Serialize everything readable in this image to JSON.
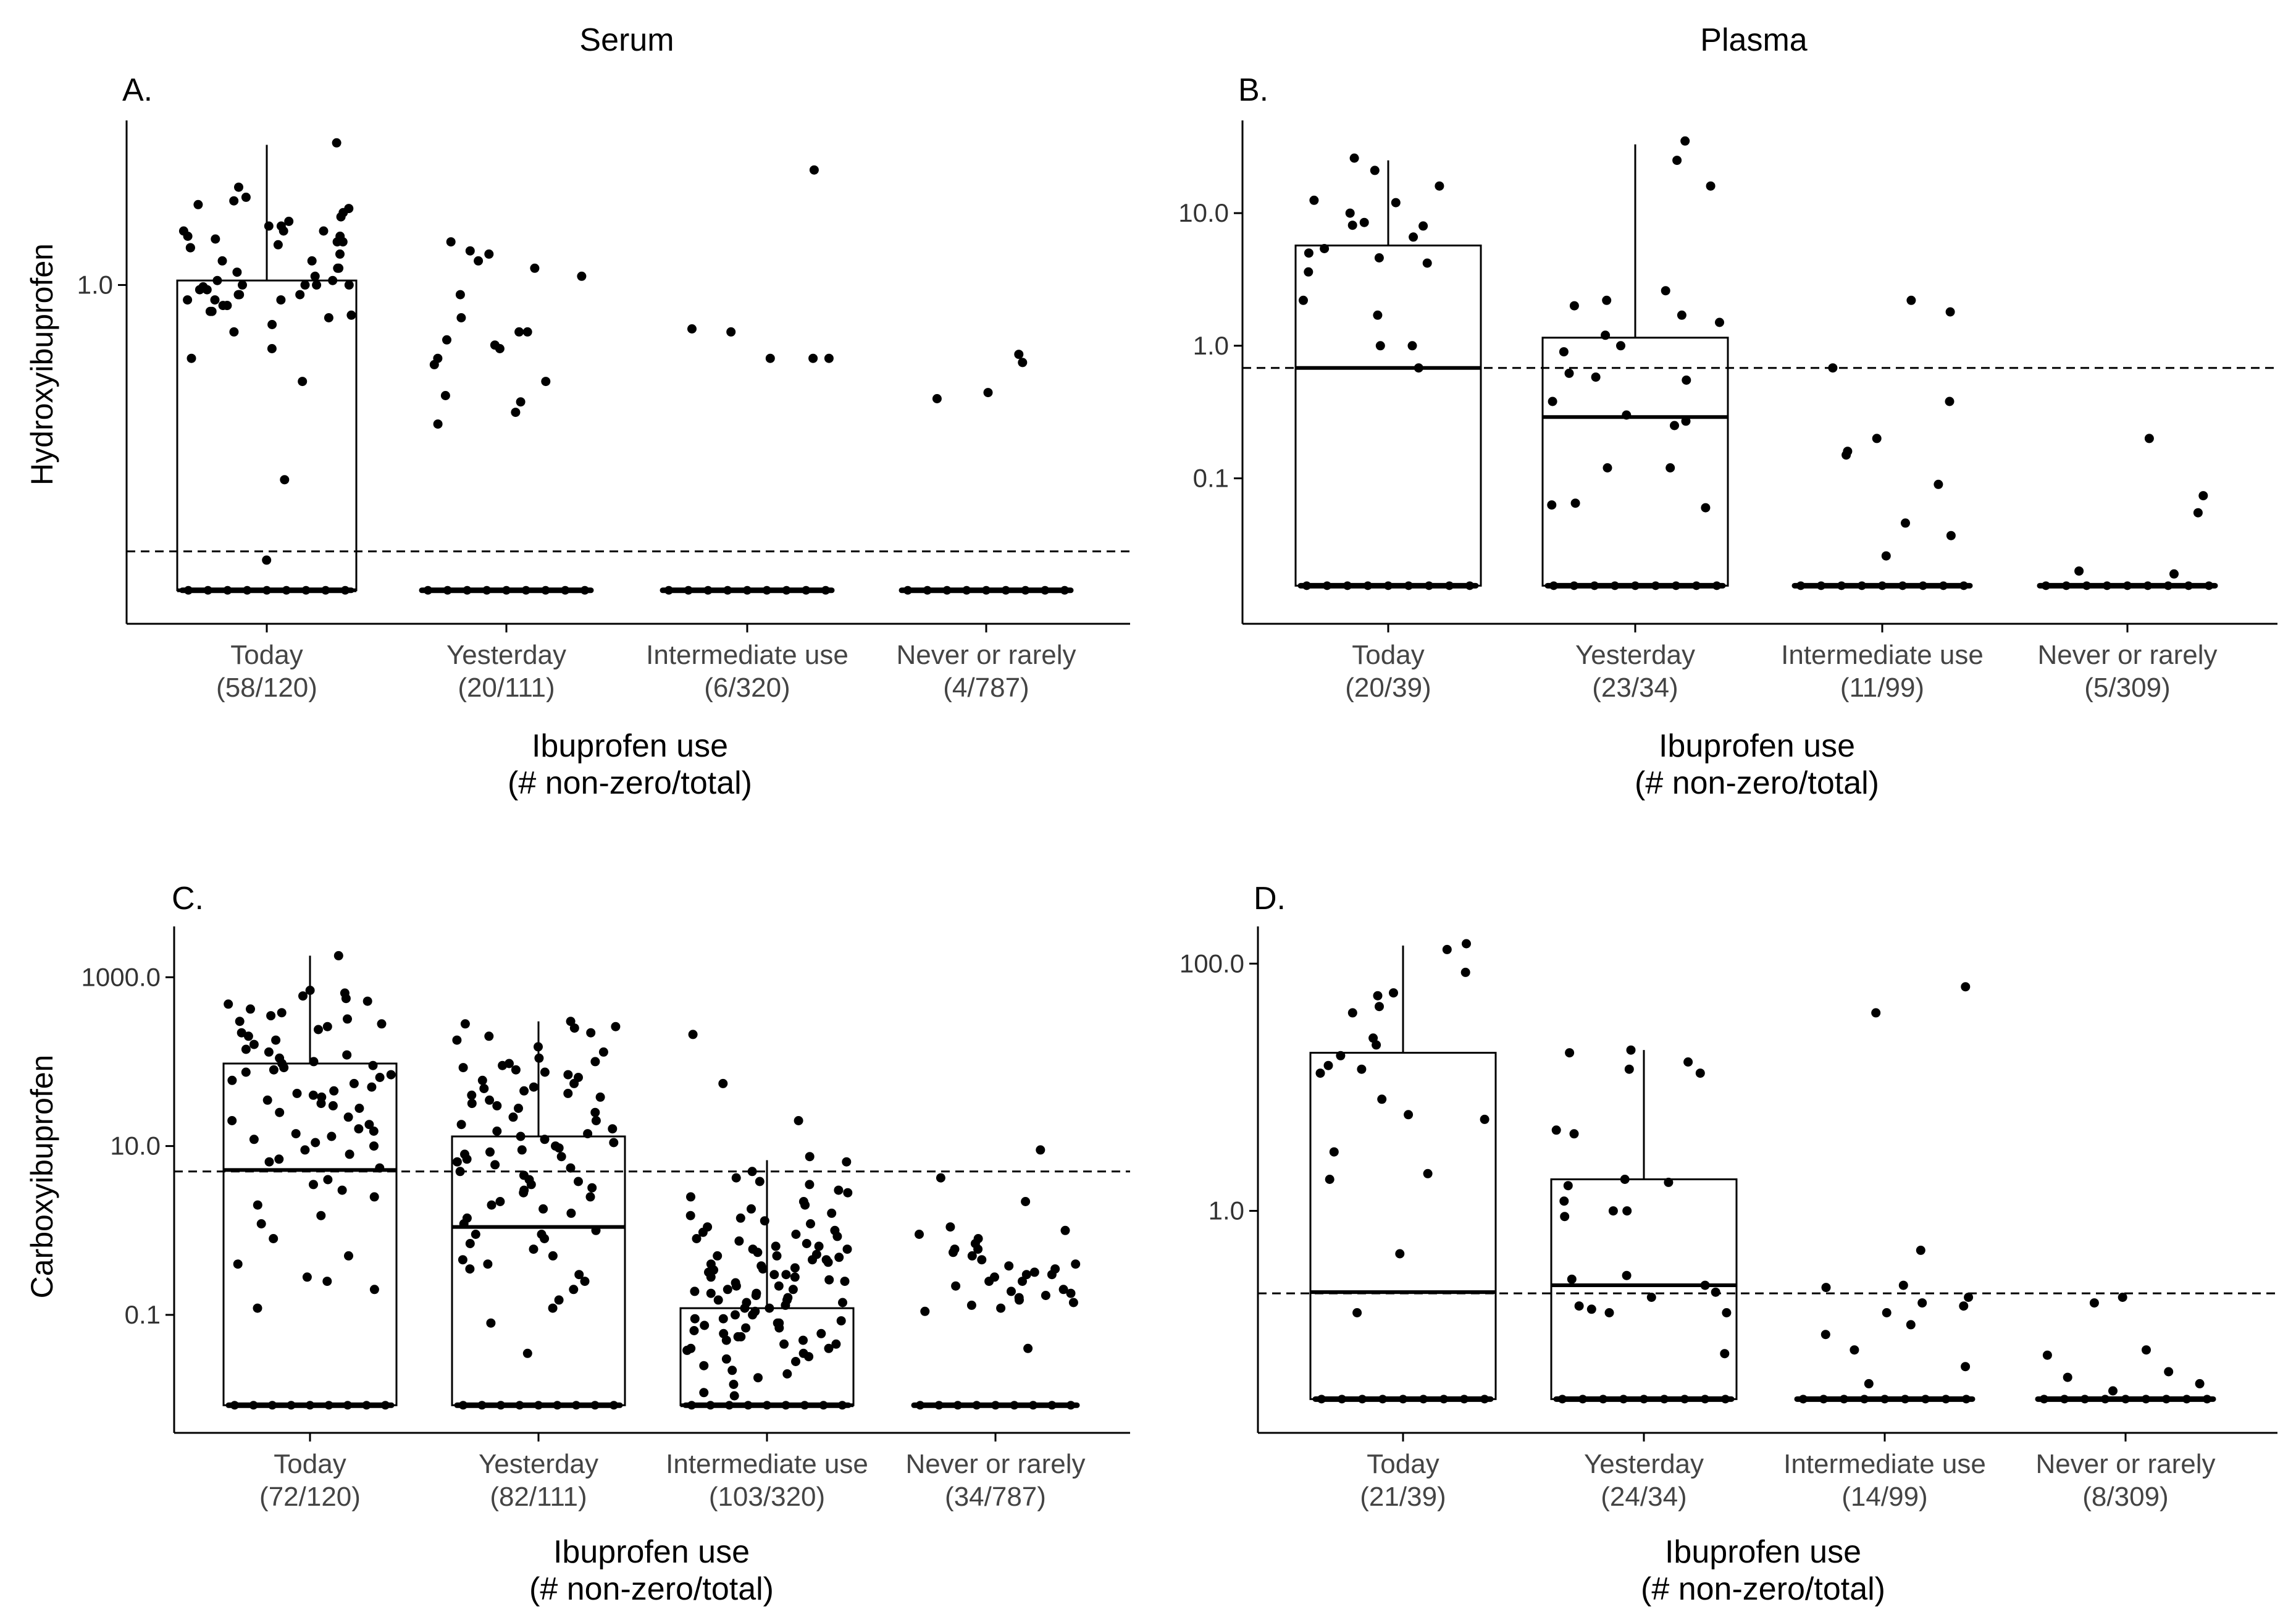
{
  "figure": {
    "column_titles": [
      "Serum",
      "Plasma"
    ]
  },
  "chart_data": [
    {
      "panel": "A.",
      "type": "boxplot+jitter",
      "scale": "log",
      "ylabel": "Hydroxyibuprofen",
      "xlabel": "Ibuprofen use",
      "xlabel_sub": "(# non-zero/total)",
      "ylim": [
        0.025,
        6
      ],
      "zero_value": 0.036,
      "yticks": [
        {
          "value": 1.0,
          "label": "1.0"
        }
      ],
      "threshold": 0.055,
      "categories": [
        {
          "name": "Today",
          "count": "(58/120)",
          "box": {
            "lower": 0.036,
            "median": 0.036,
            "upper": 1.05,
            "whisker": 4.6
          },
          "points": [
            2.4,
            1.8,
            1.6,
            1.7,
            1.8,
            1.5,
            1.3,
            1.9,
            1.6,
            1.1,
            0.9,
            0.85,
            0.8,
            1.0,
            1.0,
            0.95,
            0.9,
            0.85,
            0.8,
            0.75,
            0.7,
            1.05,
            1.2,
            1.3,
            1.4,
            2.1,
            2.5,
            2.0,
            1.9,
            1.65,
            4.7,
            2.9,
            2.3,
            2.2,
            1.7,
            1.5,
            1.2,
            1.05,
            1.0,
            0.95,
            0.9,
            0.85,
            0.8,
            0.75,
            0.72,
            0.6,
            0.5,
            0.35,
            0.12,
            0.05,
            2.6,
            1.8,
            1.15,
            1.0,
            0.98,
            0.65,
            0.45,
            1.55
          ]
        },
        {
          "name": "Yesterday",
          "count": "(20/111)",
          "box": null,
          "points": [
            1.6,
            1.2,
            1.1,
            1.3,
            0.6,
            0.5,
            0.45,
            0.3,
            0.25,
            0.22,
            0.55,
            0.52,
            0.9,
            0.7,
            0.6,
            0.42,
            0.35,
            0.28,
            1.4,
            1.45
          ]
        },
        {
          "name": "Intermediate use",
          "count": "(6/320)",
          "box": null,
          "points": [
            3.5,
            0.62,
            0.6,
            0.45,
            0.45,
            0.45
          ]
        },
        {
          "name": "Never or rarely",
          "count": "(4/787)",
          "box": null,
          "points": [
            0.31,
            0.43,
            0.47,
            0.29
          ]
        }
      ]
    },
    {
      "panel": "B.",
      "type": "boxplot+jitter",
      "scale": "log",
      "ylabel": "",
      "xlabel": "Ibuprofen use",
      "xlabel_sub": "(# non-zero/total)",
      "ylim": [
        0.008,
        50
      ],
      "zero_value": 0.0155,
      "yticks": [
        {
          "value": 10.0,
          "label": "10.0"
        },
        {
          "value": 1.0,
          "label": "1.0"
        },
        {
          "value": 0.1,
          "label": "0.1"
        }
      ],
      "threshold": 0.68,
      "categories": [
        {
          "name": "Today",
          "count": "(20/39)",
          "box": {
            "lower": 0.0155,
            "median": 0.68,
            "upper": 5.7,
            "whisker": 25
          },
          "points": [
            26,
            21,
            16,
            12,
            10,
            8.5,
            8.1,
            6.6,
            5.4,
            4.6,
            4.2,
            3.6,
            2.2,
            1.7,
            1.0,
            1.0,
            0.68,
            12.5,
            8.0,
            5.0
          ]
        },
        {
          "name": "Yesterday",
          "count": "(23/34)",
          "box": {
            "lower": 0.0155,
            "median": 0.29,
            "upper": 1.15,
            "whisker": 33
          },
          "points": [
            35,
            25,
            16,
            2.6,
            2.2,
            2.0,
            1.7,
            1.5,
            1.2,
            1.0,
            0.9,
            0.62,
            0.58,
            0.55,
            0.38,
            0.3,
            0.27,
            0.25,
            0.12,
            0.12,
            0.065,
            0.063,
            0.06
          ]
        },
        {
          "name": "Intermediate use",
          "count": "(11/99)",
          "box": null,
          "points": [
            2.2,
            1.8,
            0.68,
            0.38,
            0.2,
            0.16,
            0.15,
            0.09,
            0.046,
            0.037,
            0.026
          ]
        },
        {
          "name": "Never or rarely",
          "count": "(5/309)",
          "box": null,
          "points": [
            0.2,
            0.074,
            0.055,
            0.02,
            0.019
          ]
        }
      ]
    },
    {
      "panel": "C.",
      "type": "boxplot+jitter",
      "scale": "log",
      "ylabel": "Carboxyibuprofen",
      "xlabel": "Ibuprofen use",
      "xlabel_sub": "(# non-zero/total)",
      "ylim": [
        0.004,
        4000
      ],
      "zero_value": 0.0085,
      "yticks": [
        {
          "value": 1000.0,
          "label": "1000.0"
        },
        {
          "value": 10.0,
          "label": "10.0"
        },
        {
          "value": 0.1,
          "label": "0.1"
        }
      ],
      "threshold": 5.0,
      "categories": [
        {
          "name": "Today",
          "count": "(72/120)",
          "box": {
            "lower": 0.0085,
            "median": 5.2,
            "upper": 95,
            "whisker": 1800
          },
          "points": [
            1800,
            700,
            650,
            600,
            560,
            520,
            480,
            420,
            380,
            350,
            320,
            300,
            280,
            260,
            240,
            220,
            200,
            180,
            160,
            140,
            130,
            120,
            110,
            100,
            95,
            90,
            85,
            80,
            75,
            70,
            65,
            60,
            55,
            50,
            45,
            42,
            40,
            38,
            35,
            32,
            30,
            28,
            25,
            22,
            20,
            18,
            16,
            15,
            14,
            13,
            12,
            11,
            10,
            9,
            8,
            7,
            6.5,
            5.5,
            4,
            3.5,
            3,
            2.5,
            2,
            1.5,
            1.2,
            0.8,
            0.5,
            0.4,
            0.25,
            0.2,
            0.12,
            0.28
          ]
        },
        {
          "name": "Yesterday",
          "count": "(82/111)",
          "box": {
            "lower": 0.0085,
            "median": 1.1,
            "upper": 13,
            "whisker": 300
          },
          "points": [
            300,
            280,
            260,
            250,
            220,
            200,
            180,
            150,
            130,
            110,
            100,
            95,
            90,
            85,
            80,
            75,
            70,
            65,
            60,
            55,
            50,
            48,
            45,
            42,
            40,
            38,
            35,
            32,
            30,
            28,
            25,
            22,
            20,
            18,
            16,
            15,
            14,
            13,
            12,
            11,
            10,
            9.5,
            9,
            8.5,
            8,
            7.5,
            7,
            6.5,
            6,
            5.5,
            5,
            4.5,
            4,
            3.8,
            3.5,
            3.2,
            3,
            2.8,
            2.5,
            2.2,
            2,
            1.8,
            1.6,
            1.4,
            1.2,
            1.0,
            0.9,
            0.8,
            0.7,
            0.6,
            0.5,
            0.45,
            0.4,
            0.35,
            0.3,
            0.25,
            0.2,
            0.15,
            0.12,
            0.08,
            0.035,
            0.9
          ]
        },
        {
          "name": "Intermediate use",
          "count": "(103/320)",
          "box": {
            "lower": 0.0085,
            "median": 0.0085,
            "upper": 0.12,
            "whisker": 6.8
          },
          "points": [
            210,
            55,
            20,
            7.5,
            6.5,
            5,
            4.2,
            3.8,
            3.5,
            3.0,
            2.8,
            2.5,
            2.2,
            2.0,
            1.8,
            1.6,
            1.5,
            1.4,
            1.3,
            1.2,
            1.1,
            1.0,
            0.95,
            0.9,
            0.85,
            0.8,
            0.75,
            0.7,
            0.65,
            0.6,
            0.55,
            0.52,
            0.5,
            0.48,
            0.45,
            0.42,
            0.4,
            0.38,
            0.36,
            0.34,
            0.32,
            0.3,
            0.28,
            0.26,
            0.25,
            0.24,
            0.22,
            0.2,
            0.19,
            0.18,
            0.17,
            0.16,
            0.15,
            0.14,
            0.13,
            0.12,
            0.11,
            0.1,
            0.09,
            0.085,
            0.08,
            0.075,
            0.07,
            0.065,
            0.06,
            0.055,
            0.05,
            0.045,
            0.04,
            0.035,
            0.03,
            0.025,
            0.02,
            0.018,
            0.015,
            0.012,
            0.011,
            0.6,
            0.45,
            0.35,
            0.28,
            0.22,
            0.18,
            0.15,
            0.12,
            0.1,
            0.08,
            0.06,
            0.05,
            0.04,
            0.032,
            0.028,
            0.022,
            0.5,
            0.3,
            0.2,
            0.14,
            0.09,
            0.07,
            0.055,
            0.045,
            0.038,
            0.65
          ]
        },
        {
          "name": "Never or rarely",
          "count": "(34/787)",
          "box": null,
          "points": [
            9,
            4.2,
            2.2,
            1.1,
            1.0,
            0.9,
            0.8,
            0.7,
            0.6,
            0.55,
            0.5,
            0.45,
            0.4,
            0.38,
            0.35,
            0.32,
            0.3,
            0.28,
            0.25,
            0.22,
            0.2,
            0.19,
            0.18,
            0.17,
            0.16,
            0.15,
            0.14,
            0.13,
            0.12,
            0.11,
            0.3,
            0.25,
            0.04,
            0.6
          ]
        }
      ]
    },
    {
      "panel": "D.",
      "type": "boxplot+jitter",
      "scale": "log",
      "ylabel": "",
      "xlabel": "Ibuprofen use",
      "xlabel_sub": "(# non-zero/total)",
      "ylim": [
        0.016,
        200
      ],
      "zero_value": 0.03,
      "yticks": [
        {
          "value": 100.0,
          "label": "100.0"
        },
        {
          "value": 1.0,
          "label": "1.0"
        }
      ],
      "threshold": 0.215,
      "categories": [
        {
          "name": "Today",
          "count": "(21/39)",
          "box": {
            "lower": 0.03,
            "median": 0.22,
            "upper": 19,
            "whisker": 140
          },
          "points": [
            145,
            130,
            85,
            58,
            55,
            40,
            25,
            22,
            15,
            14,
            13,
            8,
            5.5,
            2.0,
            1.8,
            0.45,
            0.15,
            45,
            18,
            6,
            3
          ]
        },
        {
          "name": "Yesterday",
          "count": "(24/34)",
          "box": {
            "lower": 0.03,
            "median": 0.25,
            "upper": 1.8,
            "whisker": 20
          },
          "points": [
            20,
            19,
            16,
            14,
            13,
            4.5,
            4.2,
            1.8,
            1.7,
            1.6,
            1.2,
            1.0,
            1.0,
            0.9,
            0.3,
            0.28,
            0.22,
            0.2,
            0.17,
            0.16,
            0.15,
            0.15,
            0.07,
            0.25
          ]
        },
        {
          "name": "Intermediate use",
          "count": "(14/99)",
          "box": null,
          "points": [
            65,
            40,
            0.48,
            0.25,
            0.24,
            0.2,
            0.18,
            0.17,
            0.15,
            0.12,
            0.1,
            0.075,
            0.055,
            0.04
          ]
        },
        {
          "name": "Never or rarely",
          "count": "(8/309)",
          "box": null,
          "points": [
            0.2,
            0.18,
            0.075,
            0.068,
            0.05,
            0.045,
            0.04,
            0.035
          ]
        }
      ]
    }
  ]
}
